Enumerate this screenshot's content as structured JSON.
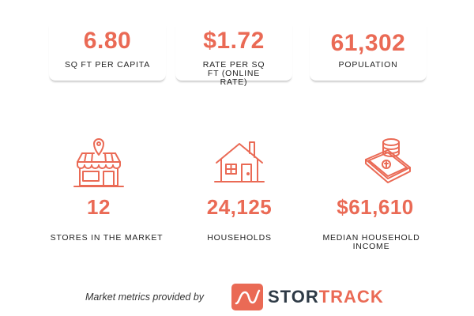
{
  "cards": [
    {
      "value": "6.80",
      "label": "SQ FT PER CAPITA"
    },
    {
      "value": "$1.72",
      "label": "RATE PER SQ FT (ONLINE RATE)"
    },
    {
      "value": "61,302",
      "label": "POPULATION"
    }
  ],
  "stats": [
    {
      "value": "12",
      "label": "STORES IN THE MARKET",
      "icon": "storefront-icon"
    },
    {
      "value": "24,125",
      "label": "HOUSEHOLDS",
      "icon": "house-icon"
    },
    {
      "value": "$61,610",
      "label": "MEDIAN HOUSEHOLD INCOME",
      "icon": "money-coins-icon"
    }
  ],
  "footer": {
    "text": "Market metrics provided by",
    "logo_part1": "STOR",
    "logo_part2": "TRACK"
  },
  "colors": {
    "accent": "#ea6a55",
    "logo_dark": "#2e3a46",
    "text": "#222222"
  }
}
